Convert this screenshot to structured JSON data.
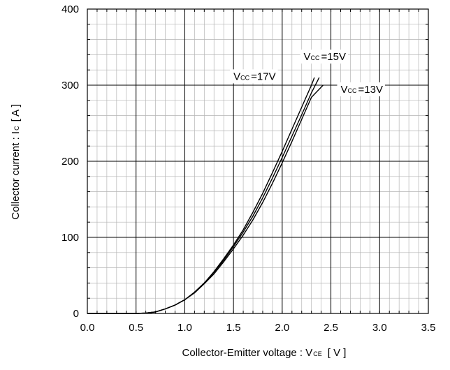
{
  "chart_data": {
    "type": "line",
    "xlabel": {
      "main": "Collector-Emitter voltage : V",
      "sub": "CE",
      "unit": "[ V ]"
    },
    "ylabel": {
      "main": "Collector current : I",
      "sub": "C",
      "unit": "[ A ]"
    },
    "xlim": [
      0,
      3.5
    ],
    "ylim": [
      0,
      400
    ],
    "xticks": [
      0.0,
      0.5,
      1.0,
      1.5,
      2.0,
      2.5,
      3.0,
      3.5
    ],
    "xtick_labels": [
      "0.0",
      "0.5",
      "1.0",
      "1.5",
      "2.0",
      "2.5",
      "3.0",
      "3.5"
    ],
    "yticks": [
      0,
      100,
      200,
      300,
      400
    ],
    "ytick_labels": [
      "0",
      "100",
      "200",
      "300",
      "400"
    ],
    "major_grid": {
      "x_step": 0.5,
      "y_step": 100
    },
    "minor_grid": {
      "x_step": 0.1,
      "y_step": 20
    },
    "grid": true,
    "series": [
      {
        "name": "Vcc=17V",
        "label": {
          "main": "V",
          "sub": "CC",
          "rest": "=17V"
        },
        "x": [
          0.5,
          0.6,
          0.7,
          0.8,
          0.9,
          1.0,
          1.1,
          1.2,
          1.3,
          1.4,
          1.5,
          1.6,
          1.7,
          1.8,
          1.9,
          2.0,
          2.1,
          2.2,
          2.3,
          2.33
        ],
        "y": [
          0,
          0.5,
          2,
          6,
          11,
          18,
          28,
          40,
          55,
          72,
          90,
          110,
          133,
          158,
          185,
          213,
          242,
          271,
          300,
          310
        ]
      },
      {
        "name": "Vcc=15V",
        "label": {
          "main": "V",
          "sub": "CC",
          "rest": "=15V"
        },
        "x": [
          0.5,
          0.6,
          0.7,
          0.8,
          0.9,
          1.0,
          1.1,
          1.2,
          1.3,
          1.4,
          1.5,
          1.6,
          1.7,
          1.8,
          1.9,
          2.0,
          2.1,
          2.2,
          2.3,
          2.38
        ],
        "y": [
          0,
          0.5,
          2,
          6,
          11,
          18,
          28,
          40,
          54,
          70,
          88,
          107,
          128,
          152,
          178,
          205,
          233,
          261,
          290,
          310
        ]
      },
      {
        "name": "Vcc=13V",
        "label": {
          "main": "V",
          "sub": "CC",
          "rest": "=13V"
        },
        "x": [
          0.5,
          0.6,
          0.7,
          0.8,
          0.9,
          1.0,
          1.1,
          1.2,
          1.3,
          1.4,
          1.5,
          1.6,
          1.7,
          1.8,
          1.9,
          2.0,
          2.1,
          2.2,
          2.3,
          2.42
        ],
        "y": [
          0,
          0.5,
          2,
          6,
          11,
          18,
          27,
          39,
          52,
          68,
          85,
          103,
          123,
          146,
          171,
          198,
          226,
          255,
          284,
          300
        ]
      }
    ]
  }
}
